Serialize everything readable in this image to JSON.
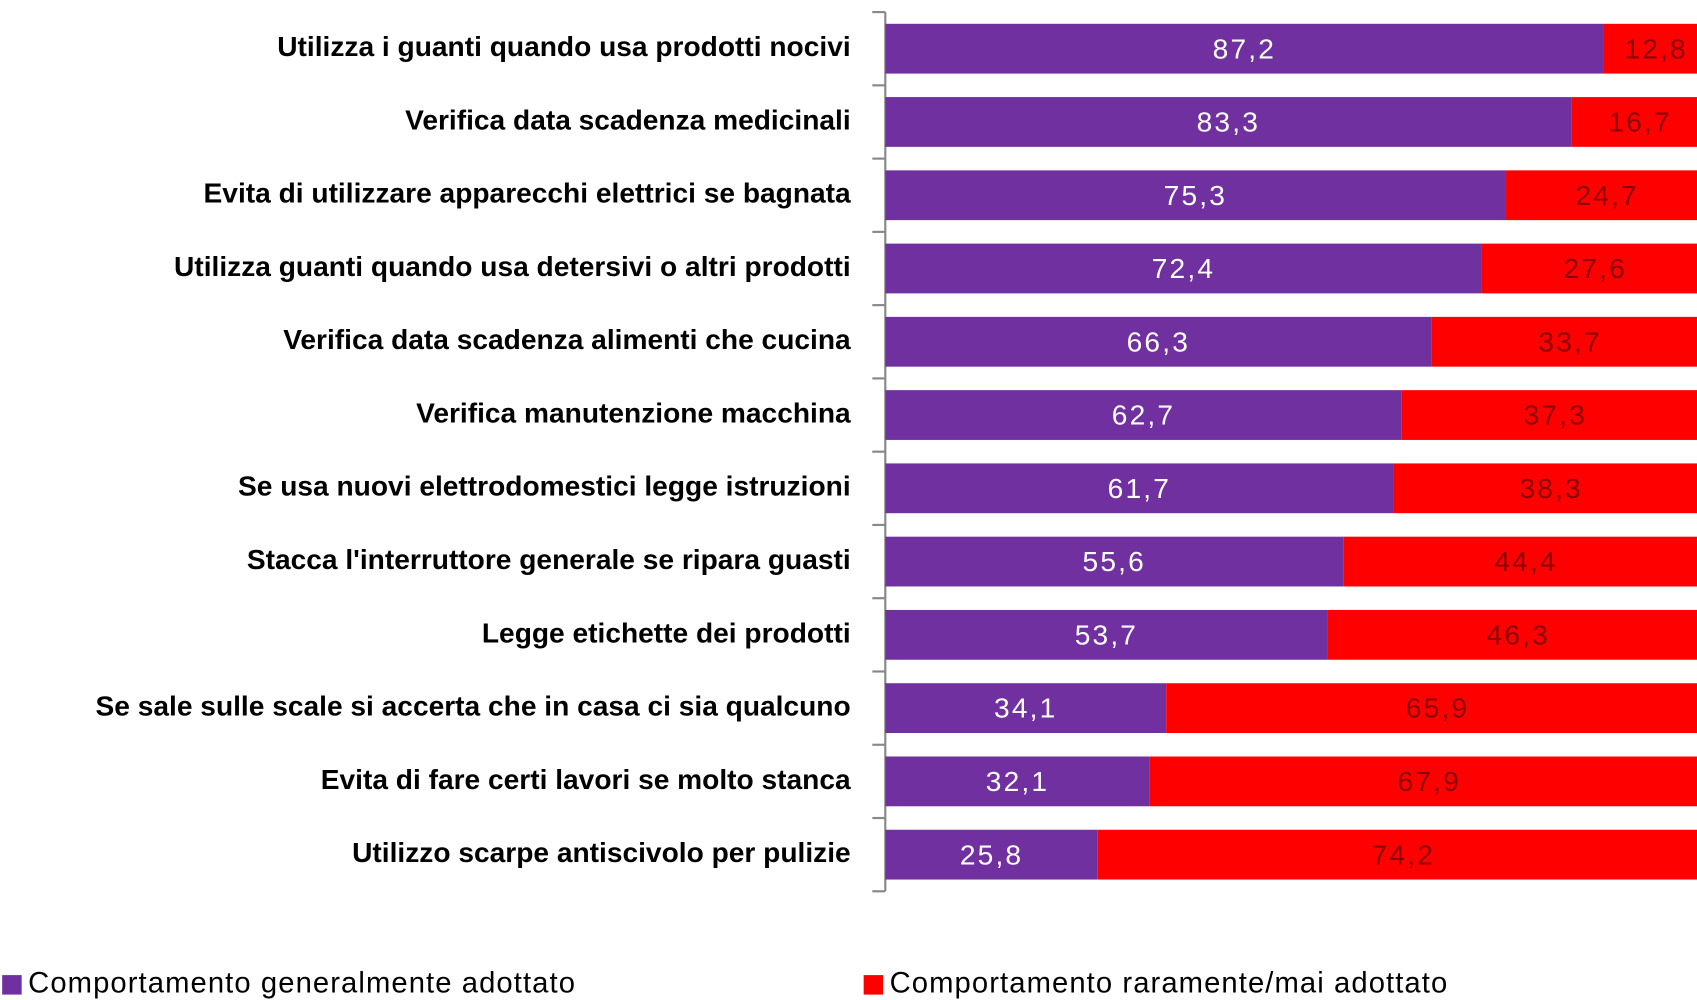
{
  "chart_data": {
    "type": "stacked-bar-horizontal",
    "categories": [
      "Utilizza i guanti quando usa prodotti nocivi",
      "Verifica data  scadenza medicinali",
      "Evita di utilizzare apparecchi elettrici se bagnata",
      "Utilizza guanti quando usa detersivi o altri prodotti",
      "Verifica  data scadenza alimenti che cucina",
      "Verifica manutenzione macchina",
      "Se usa nuovi elettrodomestici legge istruzioni",
      "Stacca l'interruttore generale se ripara guasti",
      "Legge etichette dei prodotti",
      "Se sale sulle scale si accerta che in casa ci sia qualcuno",
      "Evita di fare certi lavori se molto stanca",
      "Utilizzo  scarpe antiscivolo per pulizie"
    ],
    "series": [
      {
        "name": "Comportamento generalmente adottato",
        "color": "#7030a0",
        "label_color": "#ffffff",
        "values": [
          87.2,
          83.3,
          75.3,
          72.4,
          66.3,
          62.7,
          61.7,
          55.6,
          53.7,
          34.1,
          32.1,
          25.8
        ],
        "value_labels": [
          "87,2",
          "83,3",
          "75,3",
          "72,4",
          "66,3",
          "62,7",
          "61,7",
          "55,6",
          "53,7",
          "34,1",
          "32,1",
          "25,8"
        ]
      },
      {
        "name": "Comportamento raramente/mai adottato",
        "color": "#ff0000",
        "label_color": "#8b0000",
        "values": [
          12.8,
          16.7,
          24.7,
          27.6,
          33.7,
          37.3,
          38.3,
          44.4,
          46.3,
          65.9,
          67.9,
          74.2
        ],
        "value_labels": [
          "12,8",
          "16,7",
          "24,7",
          "27,6",
          "33,7",
          "37,3",
          "38,3",
          "44,4",
          "46,3",
          "65,9",
          "67,9",
          "74,2"
        ]
      }
    ],
    "xlim": [
      0,
      100
    ]
  }
}
